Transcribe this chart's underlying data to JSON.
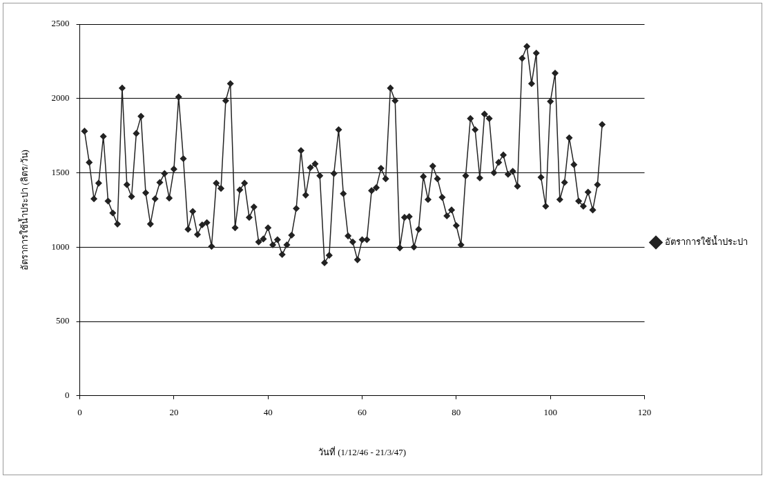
{
  "chart_data": {
    "type": "line",
    "xlabel": "วันที่ (1/12/46 - 21/3/47)",
    "ylabel": "อัตราการใช้น้ำประปา (ลิตร/วัน)",
    "x": [
      1,
      2,
      3,
      4,
      5,
      6,
      7,
      8,
      9,
      10,
      11,
      12,
      13,
      14,
      15,
      16,
      17,
      18,
      19,
      20,
      21,
      22,
      23,
      24,
      25,
      26,
      27,
      28,
      29,
      30,
      31,
      32,
      33,
      34,
      35,
      36,
      37,
      38,
      39,
      40,
      41,
      42,
      43,
      44,
      45,
      46,
      47,
      48,
      49,
      50,
      51,
      52,
      53,
      54,
      55,
      56,
      57,
      58,
      59,
      60,
      61,
      62,
      63,
      64,
      65,
      66,
      67,
      68,
      69,
      70,
      71,
      72,
      73,
      74,
      75,
      76,
      77,
      78,
      79,
      80,
      81,
      82,
      83,
      84,
      85,
      86,
      87,
      88,
      89,
      90,
      91,
      92,
      93,
      94,
      95,
      96,
      97,
      98,
      99,
      100,
      101,
      102,
      103,
      104,
      105,
      106,
      107,
      108,
      109,
      110,
      111
    ],
    "series": [
      {
        "name": "อัตราการใช้น้ำประปา",
        "color": "#222222",
        "values": [
          1780,
          1570,
          1325,
          1430,
          1745,
          1310,
          1230,
          1155,
          2070,
          1420,
          1340,
          1765,
          1880,
          1365,
          1155,
          1325,
          1435,
          1495,
          1330,
          1525,
          2010,
          1595,
          1120,
          1240,
          1085,
          1150,
          1165,
          1005,
          1430,
          1395,
          1985,
          2100,
          1130,
          1385,
          1430,
          1200,
          1270,
          1035,
          1055,
          1130,
          1015,
          1050,
          950,
          1015,
          1080,
          1260,
          1650,
          1350,
          1535,
          1560,
          1480,
          895,
          945,
          1495,
          1790,
          1360,
          1075,
          1035,
          915,
          1050,
          1050,
          1380,
          1400,
          1530,
          1460,
          2070,
          1985,
          995,
          1200,
          1205,
          1000,
          1120,
          1475,
          1320,
          1545,
          1460,
          1335,
          1210,
          1250,
          1145,
          1015,
          1480,
          1865,
          1790,
          1465,
          1895,
          1865,
          1500,
          1570,
          1620,
          1490,
          1510,
          1410,
          2270,
          2350,
          2100,
          2305,
          1470,
          1275,
          1980,
          2170,
          1320,
          1435,
          1735,
          1555,
          1310,
          1275,
          1370,
          1250,
          1420,
          1825
        ]
      }
    ],
    "xlim": [
      0,
      120
    ],
    "xticks": [
      0,
      20,
      40,
      60,
      80,
      100,
      120
    ],
    "ylim": [
      0,
      2500
    ],
    "yticks": [
      0,
      500,
      1000,
      1500,
      2000,
      2500
    ],
    "grid": "y",
    "legend": "right",
    "marker": "diamond",
    "line_style": "solid"
  }
}
